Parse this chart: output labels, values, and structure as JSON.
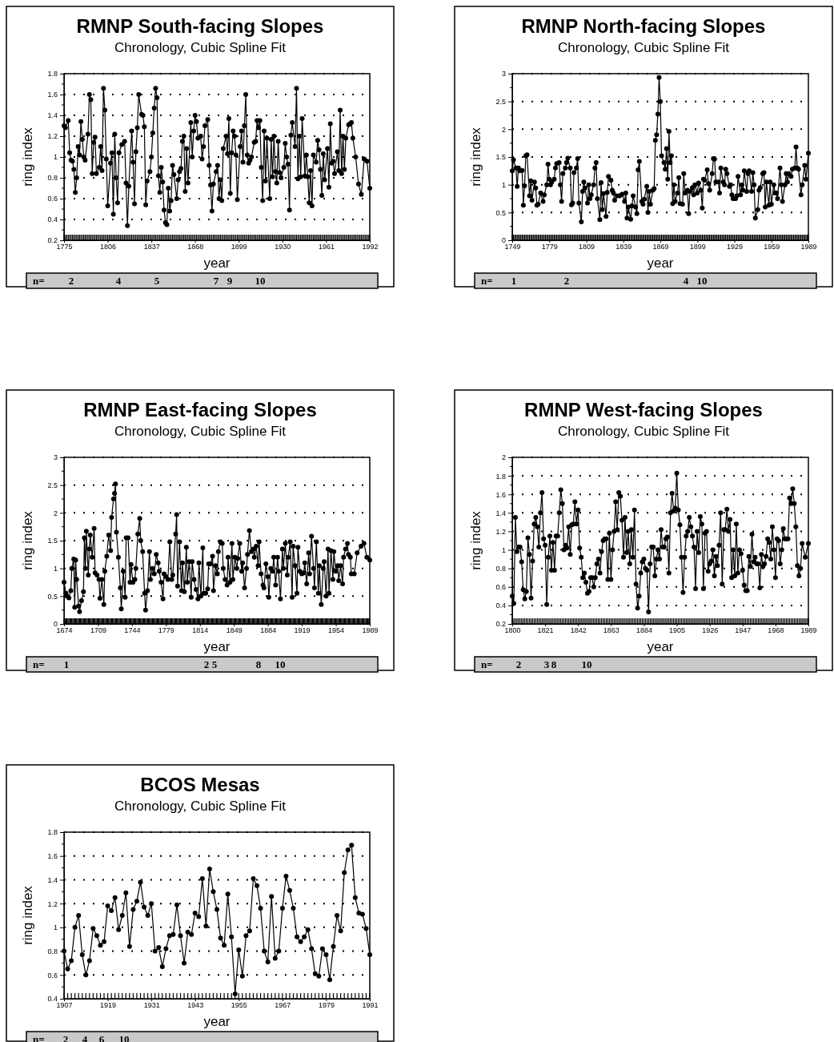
{
  "chart_data": [
    {
      "type": "line",
      "title": "RMNP South-facing Slopes",
      "subtitle": "Chronology, Cubic Spline Fit",
      "xlabel": "year",
      "ylabel": "ring index",
      "color": "#000000",
      "marker": "circle",
      "line_style": "solid",
      "grid": "y",
      "xlim": [
        1775,
        1992
      ],
      "xticks": [
        1775,
        1806,
        1837,
        1868,
        1899,
        1930,
        1961,
        1992
      ],
      "ylim": [
        0.2,
        1.8
      ],
      "yticks": [
        0.2,
        0.4,
        0.6,
        0.8,
        1,
        1.2,
        1.4,
        1.6,
        1.8
      ],
      "x": [
        1775,
        1776,
        1778,
        1779,
        1780,
        1781,
        1782,
        1783,
        1784,
        1785,
        1786,
        1787,
        1788,
        1789,
        1790,
        1792,
        1793,
        1794,
        1795,
        1796,
        1797,
        1798,
        1800,
        1801,
        1802,
        1803,
        1804,
        1805,
        1806,
        1808,
        1809,
        1810,
        1811,
        1812,
        1813,
        1814,
        1816,
        1818,
        1819,
        1820,
        1821,
        1823,
        1824,
        1825,
        1826,
        1827,
        1828,
        1830,
        1831,
        1832,
        1833,
        1834,
        1836,
        1837,
        1838,
        1839,
        1840,
        1841,
        1842,
        1843,
        1844,
        1845,
        1846,
        1847,
        1848,
        1849,
        1850,
        1851,
        1852,
        1853,
        1855,
        1856,
        1857,
        1858,
        1859,
        1860,
        1861,
        1862,
        1863,
        1865,
        1866,
        1867,
        1868,
        1869,
        1870,
        1872,
        1873,
        1874,
        1875,
        1877,
        1878,
        1879,
        1880,
        1881,
        1883,
        1884,
        1885,
        1886,
        1887,
        1888,
        1890,
        1891,
        1892,
        1893,
        1894,
        1895,
        1896,
        1897,
        1898,
        1900,
        1901,
        1902,
        1903,
        1904,
        1905,
        1906,
        1907,
        1908,
        1910,
        1911,
        1912,
        1913,
        1914,
        1915,
        1916,
        1917,
        1918,
        1919,
        1921,
        1922,
        1923,
        1924,
        1925,
        1926,
        1927,
        1928,
        1929,
        1931,
        1932,
        1933,
        1934,
        1935,
        1936,
        1937,
        1939,
        1940,
        1941,
        1942,
        1943,
        1944,
        1946,
        1947,
        1948,
        1949,
        1950,
        1951,
        1952,
        1954,
        1955,
        1956,
        1957,
        1958,
        1959,
        1960,
        1962,
        1963,
        1964,
        1965,
        1966,
        1967,
        1969,
        1970,
        1971,
        1972,
        1973,
        1974,
        1975,
        1977,
        1978,
        1979,
        1980,
        1982,
        1984,
        1986,
        1988,
        1990,
        1992
      ],
      "values": [
        1.3,
        1.28,
        1.35,
        1.04,
        0.97,
        0.96,
        0.88,
        0.66,
        0.8,
        1.1,
        1.02,
        1.34,
        1.17,
        1.0,
        0.97,
        1.22,
        1.6,
        1.55,
        0.84,
        1.14,
        1.19,
        0.84,
        0.9,
        1.1,
        0.87,
        1.66,
        1.45,
        0.98,
        0.53,
        0.94,
        1.04,
        0.45,
        1.22,
        0.8,
        0.56,
        1.04,
        1.12,
        1.15,
        0.75,
        0.34,
        0.72,
        1.25,
        0.95,
        0.55,
        1.05,
        1.28,
        1.6,
        1.41,
        1.4,
        1.29,
        0.54,
        0.77,
        0.86,
        1.0,
        1.23,
        1.47,
        1.66,
        1.57,
        0.82,
        0.66,
        0.9,
        0.76,
        0.49,
        0.37,
        0.35,
        0.7,
        0.48,
        0.58,
        0.92,
        0.83,
        0.6,
        0.78,
        0.86,
        0.89,
        1.15,
        1.2,
        0.67,
        1.08,
        0.75,
        1.33,
        1.0,
        1.25,
        1.4,
        1.34,
        1.18,
        1.2,
        0.98,
        1.1,
        1.3,
        1.36,
        0.92,
        0.73,
        0.48,
        0.74,
        0.86,
        0.92,
        0.6,
        0.78,
        0.58,
        1.08,
        1.2,
        1.03,
        1.37,
        0.65,
        1.04,
        1.25,
        1.2,
        1.02,
        0.59,
        1.1,
        1.25,
        0.95,
        1.3,
        1.6,
        1.02,
        0.94,
        0.97,
        1.0,
        1.14,
        1.15,
        1.35,
        1.28,
        1.35,
        0.9,
        0.58,
        1.25,
        0.77,
        1.18,
        0.6,
        1.17,
        0.81,
        1.2,
        0.86,
        0.75,
        1.15,
        0.85,
        0.8,
        0.9,
        1.13,
        1.0,
        0.93,
        0.49,
        1.21,
        1.33,
        1.1,
        1.66,
        0.79,
        1.2,
        0.81,
        1.37,
        0.82,
        1.02,
        0.81,
        0.56,
        0.87,
        0.53,
        1.02,
        0.95,
        1.16,
        1.07,
        0.88,
        0.63,
        1.03,
        0.78,
        1.08,
        0.71,
        1.32,
        0.94,
        0.96,
        0.84,
        1.05,
        0.87,
        1.45,
        0.84,
        1.2,
        0.88,
        1.18,
        1.31,
        1.32,
        1.33,
        1.18,
        1.0,
        0.74,
        0.64,
        0.98,
        0.96,
        0.7
      ],
      "annotations": [
        "n=",
        "2",
        "4",
        "5",
        "7",
        "9",
        "10"
      ]
    },
    {
      "type": "line",
      "title": "RMNP North-facing Slopes",
      "subtitle": "Chronology, Cubic Spline Fit",
      "xlabel": "year",
      "ylabel": "ring index",
      "color": "#000000",
      "marker": "circle",
      "line_style": "solid",
      "grid": "y",
      "xlim": [
        1749,
        1989
      ],
      "xticks": [
        1749,
        1779,
        1809,
        1839,
        1869,
        1899,
        1929,
        1959,
        1989
      ],
      "ylim": [
        0,
        3
      ],
      "yticks": [
        0,
        0.5,
        1,
        1.5,
        2,
        2.5,
        3
      ],
      "x": [
        1749,
        1750,
        1752,
        1753,
        1754,
        1755,
        1757,
        1758,
        1759,
        1760,
        1761,
        1763,
        1764,
        1765,
        1767,
        1768,
        1769,
        1770,
        1772,
        1774,
        1775,
        1777,
        1778,
        1779,
        1780,
        1781,
        1783,
        1784,
        1785,
        1787,
        1788,
        1789,
        1790,
        1792,
        1793,
        1794,
        1796,
        1797,
        1798,
        1799,
        1801,
        1802,
        1803,
        1805,
        1806,
        1807,
        1808,
        1810,
        1811,
        1812,
        1813,
        1815,
        1816,
        1817,
        1818,
        1820,
        1821,
        1822,
        1823,
        1825,
        1826,
        1827,
        1829,
        1830,
        1831,
        1832,
        1834,
        1836,
        1838,
        1840,
        1841,
        1842,
        1843,
        1845,
        1846,
        1847,
        1849,
        1850,
        1851,
        1852,
        1854,
        1855,
        1856,
        1858,
        1859,
        1860,
        1861,
        1863,
        1864,
        1865,
        1866,
        1867,
        1868,
        1869,
        1870,
        1872,
        1873,
        1874,
        1875,
        1876,
        1877,
        1878,
        1879,
        1880,
        1881,
        1883,
        1884,
        1885,
        1887,
        1888,
        1889,
        1891,
        1892,
        1893,
        1895,
        1896,
        1897,
        1899,
        1900,
        1902,
        1903,
        1904,
        1905,
        1907,
        1908,
        1909,
        1911,
        1912,
        1913,
        1914,
        1916,
        1917,
        1918,
        1920,
        1921,
        1922,
        1923,
        1925,
        1926,
        1927,
        1928,
        1930,
        1931,
        1932,
        1934,
        1935,
        1936,
        1937,
        1939,
        1940,
        1941,
        1943,
        1944,
        1945,
        1946,
        1948,
        1949,
        1950,
        1952,
        1953,
        1954,
        1955,
        1957,
        1958,
        1959,
        1961,
        1962,
        1963,
        1964,
        1966,
        1967,
        1968,
        1970,
        1971,
        1972,
        1973,
        1975,
        1976,
        1978,
        1979,
        1980,
        1981,
        1983,
        1984,
        1986,
        1987,
        1989
      ],
      "values": [
        1.25,
        1.45,
        1.3,
        0.97,
        1.3,
        1.25,
        1.26,
        0.63,
        0.98,
        1.52,
        1.54,
        0.8,
        1.07,
        0.72,
        1.05,
        0.94,
        0.63,
        0.65,
        0.85,
        0.7,
        0.82,
        1.0,
        1.37,
        1.1,
        1.0,
        1.05,
        1.1,
        1.3,
        1.38,
        1.4,
        1.0,
        0.7,
        1.2,
        1.3,
        1.4,
        1.48,
        1.3,
        0.64,
        0.67,
        1.22,
        1.3,
        1.47,
        0.67,
        0.33,
        0.88,
        1.05,
        0.94,
        0.67,
        1.0,
        0.75,
        0.82,
        1.0,
        1.3,
        1.4,
        0.75,
        0.37,
        1.04,
        0.55,
        0.84,
        0.43,
        0.86,
        1.15,
        1.08,
        0.9,
        0.85,
        0.72,
        0.8,
        0.8,
        0.83,
        0.7,
        0.85,
        0.4,
        0.6,
        0.38,
        0.62,
        0.8,
        0.6,
        0.48,
        1.27,
        1.42,
        0.7,
        0.65,
        0.74,
        0.97,
        0.5,
        0.88,
        0.65,
        0.9,
        0.93,
        1.8,
        1.9,
        2.27,
        2.93,
        2.5,
        1.52,
        1.4,
        1.28,
        1.65,
        1.1,
        1.96,
        1.4,
        1.52,
        0.66,
        1.0,
        0.7,
        0.85,
        1.13,
        0.66,
        0.65,
        1.2,
        0.85,
        0.9,
        0.48,
        0.88,
        0.95,
        0.82,
        1.0,
        0.85,
        1.03,
        0.9,
        0.58,
        1.1,
        1.08,
        1.27,
        1.02,
        0.9,
        1.2,
        1.47,
        1.46,
        1.05,
        1.05,
        0.85,
        1.3,
        1.05,
        1.0,
        1.28,
        1.2,
        0.97,
        1.0,
        0.82,
        0.75,
        0.75,
        0.8,
        1.15,
        0.82,
        1.0,
        0.9,
        1.25,
        0.88,
        1.2,
        1.25,
        0.88,
        1.22,
        1.0,
        0.4,
        0.55,
        0.9,
        0.95,
        1.2,
        1.22,
        0.6,
        1.05,
        0.63,
        1.05,
        0.65,
        1.0,
        0.85,
        0.85,
        0.75,
        1.3,
        1.0,
        0.7,
        1.0,
        1.2,
        1.05,
        1.2,
        1.15,
        1.28,
        1.3,
        1.68,
        1.3,
        1.28,
        0.82,
        1.0,
        1.35,
        1.1,
        1.57
      ],
      "annotations": [
        "n=",
        "1",
        "2",
        "4",
        "10"
      ]
    },
    {
      "type": "line",
      "title": "RMNP East-facing Slopes",
      "subtitle": "Chronology, Cubic Spline Fit",
      "xlabel": "year",
      "ylabel": "ring index",
      "color": "#000000",
      "marker": "circle",
      "line_style": "solid",
      "grid": "y",
      "xlim": [
        1674,
        1989
      ],
      "xticks": [
        1674,
        1709,
        1744,
        1779,
        1814,
        1849,
        1884,
        1919,
        1954,
        1989
      ],
      "ylim": [
        0,
        3
      ],
      "yticks": [
        0,
        0.5,
        1,
        1.5,
        2,
        2.5,
        3
      ],
      "x": [
        1674,
        1676,
        1677,
        1679,
        1681,
        1682,
        1684,
        1685,
        1686,
        1687,
        1689,
        1690,
        1692,
        1694,
        1695,
        1696,
        1697,
        1699,
        1700,
        1701,
        1703,
        1705,
        1706,
        1708,
        1710,
        1711,
        1713,
        1715,
        1716,
        1718,
        1720,
        1722,
        1723,
        1725,
        1726,
        1727,
        1728,
        1730,
        1732,
        1733,
        1735,
        1737,
        1738,
        1740,
        1742,
        1743,
        1745,
        1747,
        1748,
        1750,
        1752,
        1753,
        1755,
        1757,
        1758,
        1760,
        1762,
        1763,
        1765,
        1767,
        1769,
        1771,
        1772,
        1774,
        1776,
        1777,
        1779,
        1781,
        1783,
        1785,
        1786,
        1789,
        1790,
        1791,
        1793,
        1795,
        1796,
        1798,
        1800,
        1801,
        1803,
        1805,
        1806,
        1808,
        1810,
        1812,
        1813,
        1815,
        1817,
        1818,
        1820,
        1822,
        1823,
        1825,
        1827,
        1828,
        1830,
        1832,
        1833,
        1835,
        1837,
        1838,
        1840,
        1842,
        1843,
        1845,
        1847,
        1848,
        1850,
        1852,
        1853,
        1855,
        1857,
        1858,
        1860,
        1862,
        1863,
        1865,
        1867,
        1869,
        1870,
        1872,
        1874,
        1875,
        1877,
        1879,
        1880,
        1882,
        1884,
        1885,
        1887,
        1889,
        1890,
        1892,
        1894,
        1895,
        1897,
        1899,
        1900,
        1902,
        1904,
        1905,
        1907,
        1909,
        1910,
        1912,
        1914,
        1915,
        1917,
        1919,
        1921,
        1922,
        1924,
        1926,
        1927,
        1929,
        1931,
        1932,
        1934,
        1936,
        1937,
        1939,
        1941,
        1942,
        1944,
        1946,
        1947,
        1949,
        1951,
        1952,
        1954,
        1956,
        1957,
        1959,
        1961,
        1962,
        1964,
        1966,
        1967,
        1969,
        1970,
        1973,
        1976,
        1980,
        1983,
        1986,
        1989
      ],
      "values": [
        0.75,
        0.55,
        0.5,
        0.47,
        0.6,
        1.0,
        1.17,
        0.3,
        1.15,
        0.8,
        0.32,
        0.22,
        0.42,
        0.58,
        1.55,
        1.0,
        1.67,
        0.88,
        1.35,
        1.6,
        1.2,
        1.72,
        0.92,
        0.88,
        0.8,
        0.46,
        0.8,
        0.35,
        0.95,
        1.22,
        1.6,
        1.32,
        1.92,
        2.25,
        2.35,
        2.52,
        1.65,
        1.2,
        0.65,
        0.27,
        0.95,
        0.48,
        1.55,
        1.55,
        0.75,
        1.07,
        0.75,
        0.8,
        1.0,
        1.62,
        1.9,
        1.5,
        1.3,
        0.55,
        0.25,
        0.6,
        1.3,
        0.8,
        1.0,
        0.9,
        1.25,
        1.1,
        0.95,
        0.75,
        0.45,
        0.9,
        0.85,
        0.8,
        1.48,
        0.8,
        0.88,
        1.62,
        1.97,
        0.68,
        1.48,
        0.6,
        1.1,
        0.58,
        1.38,
        0.75,
        1.12,
        0.48,
        1.12,
        0.8,
        0.62,
        0.45,
        1.1,
        0.5,
        1.37,
        0.55,
        0.55,
        0.63,
        1.08,
        1.08,
        1.22,
        0.6,
        1.05,
        0.9,
        1.3,
        1.48,
        1.45,
        1.0,
        0.8,
        0.7,
        1.2,
        0.75,
        1.45,
        0.8,
        1.2,
        1.0,
        1.18,
        1.45,
        0.95,
        1.1,
        0.65,
        1.0,
        1.25,
        1.68,
        1.3,
        1.35,
        1.2,
        1.4,
        1.05,
        1.48,
        0.9,
        0.7,
        0.65,
        1.08,
        0.85,
        0.48,
        1.0,
        0.95,
        1.2,
        0.7,
        1.2,
        0.95,
        0.45,
        1.35,
        1.0,
        1.45,
        0.88,
        1.2,
        1.48,
        0.48,
        1.4,
        1.05,
        0.55,
        1.38,
        0.95,
        0.9,
        0.92,
        1.1,
        0.72,
        1.28,
        0.9,
        1.58,
        1.0,
        0.65,
        1.48,
        0.55,
        1.05,
        0.35,
        1.0,
        1.12,
        0.5,
        1.35,
        0.55,
        1.32,
        0.8,
        1.3,
        0.95,
        1.05,
        0.78,
        1.05,
        0.72,
        1.2,
        1.35,
        1.45,
        1.25,
        1.2,
        0.9,
        0.9,
        1.28,
        1.4,
        1.45,
        1.2,
        1.15
      ],
      "annotations": [
        "n=",
        "1",
        "2",
        "5",
        "8",
        "10"
      ]
    },
    {
      "type": "line",
      "title": "RMNP West-facing Slopes",
      "subtitle": "Chronology, Cubic Spline Fit",
      "xlabel": "year",
      "ylabel": "ring index",
      "color": "#000000",
      "marker": "circle",
      "line_style": "solid",
      "grid": "y",
      "xlim": [
        1800,
        1989
      ],
      "xticks": [
        1800,
        1821,
        1842,
        1863,
        1884,
        1905,
        1926,
        1947,
        1968,
        1989
      ],
      "ylim": [
        0.2,
        2
      ],
      "yticks": [
        0.2,
        0.4,
        0.6,
        0.8,
        1,
        1.2,
        1.4,
        1.6,
        1.8,
        2
      ],
      "x": [
        1800,
        1801,
        1802,
        1803,
        1804,
        1805,
        1806,
        1807,
        1808,
        1809,
        1810,
        1811,
        1812,
        1813,
        1814,
        1815,
        1816,
        1817,
        1818,
        1819,
        1820,
        1821,
        1822,
        1823,
        1824,
        1825,
        1826,
        1827,
        1828,
        1829,
        1830,
        1831,
        1832,
        1833,
        1834,
        1835,
        1836,
        1837,
        1838,
        1839,
        1840,
        1841,
        1842,
        1843,
        1844,
        1845,
        1846,
        1847,
        1848,
        1849,
        1850,
        1851,
        1852,
        1853,
        1854,
        1855,
        1856,
        1857,
        1858,
        1859,
        1860,
        1861,
        1862,
        1863,
        1864,
        1865,
        1866,
        1867,
        1868,
        1869,
        1870,
        1871,
        1872,
        1873,
        1874,
        1875,
        1876,
        1877,
        1878,
        1879,
        1880,
        1881,
        1882,
        1883,
        1884,
        1885,
        1886,
        1887,
        1888,
        1889,
        1890,
        1891,
        1892,
        1893,
        1894,
        1895,
        1896,
        1897,
        1898,
        1899,
        1900,
        1901,
        1902,
        1903,
        1904,
        1905,
        1906,
        1907,
        1908,
        1909,
        1910,
        1911,
        1912,
        1913,
        1914,
        1915,
        1916,
        1917,
        1918,
        1919,
        1920,
        1921,
        1922,
        1923,
        1924,
        1925,
        1926,
        1927,
        1928,
        1929,
        1930,
        1931,
        1932,
        1933,
        1934,
        1935,
        1936,
        1937,
        1938,
        1939,
        1940,
        1941,
        1942,
        1943,
        1944,
        1945,
        1946,
        1947,
        1948,
        1949,
        1950,
        1951,
        1952,
        1953,
        1954,
        1955,
        1956,
        1957,
        1958,
        1959,
        1960,
        1961,
        1962,
        1963,
        1964,
        1965,
        1966,
        1967,
        1968,
        1969,
        1970,
        1971,
        1972,
        1973,
        1974,
        1975,
        1976,
        1977,
        1978,
        1979,
        1980,
        1981,
        1982,
        1983,
        1984,
        1985,
        1987,
        1989
      ],
      "values": [
        0.5,
        0.42,
        1.35,
        0.98,
        1.03,
        1.03,
        0.87,
        0.57,
        0.47,
        0.55,
        1.13,
        0.95,
        0.48,
        0.88,
        1.28,
        1.35,
        1.25,
        1.03,
        1.4,
        1.62,
        1.12,
        1.05,
        0.41,
        0.92,
        1.15,
        0.78,
        1.08,
        0.78,
        1.15,
        1.15,
        1.4,
        1.65,
        1.5,
        1.0,
        1.05,
        1.02,
        1.25,
        0.95,
        1.27,
        1.28,
        1.52,
        1.28,
        1.43,
        1.02,
        0.92,
        0.7,
        0.75,
        0.65,
        0.53,
        0.55,
        0.7,
        0.7,
        0.6,
        0.7,
        0.85,
        0.9,
        0.75,
        0.98,
        1.1,
        1.12,
        1.12,
        0.68,
        1.18,
        0.68,
        1.0,
        1.2,
        1.52,
        1.22,
        1.62,
        1.58,
        1.32,
        0.92,
        1.35,
        0.97,
        1.2,
        0.85,
        1.22,
        0.92,
        1.43,
        0.63,
        0.37,
        0.5,
        0.75,
        0.87,
        0.9,
        0.8,
        0.78,
        0.33,
        0.85,
        1.03,
        1.03,
        0.72,
        0.9,
        1.0,
        0.9,
        1.22,
        1.03,
        1.03,
        1.12,
        1.14,
        0.75,
        1.4,
        1.61,
        1.42,
        1.45,
        1.83,
        1.43,
        1.27,
        0.92,
        0.54,
        0.92,
        1.15,
        1.2,
        1.35,
        1.25,
        1.15,
        1.03,
        0.58,
        1.2,
        0.97,
        1.36,
        1.28,
        0.58,
        1.18,
        1.2,
        0.77,
        0.85,
        0.88,
        1.0,
        0.72,
        0.93,
        0.83,
        1.05,
        1.4,
        0.63,
        1.22,
        1.22,
        1.44,
        1.2,
        1.33,
        0.7,
        1.0,
        0.72,
        1.28,
        0.75,
        1.0,
        0.96,
        0.78,
        0.62,
        0.56,
        0.56,
        0.93,
        0.82,
        1.17,
        0.87,
        0.92,
        0.85,
        0.85,
        0.59,
        0.95,
        0.82,
        0.85,
        0.93,
        1.12,
        1.08,
        0.9,
        1.25,
        1.0,
        0.7,
        1.12,
        1.1,
        0.85,
        1.0,
        1.23,
        1.12,
        1.12,
        1.12,
        1.56,
        1.5,
        1.66,
        1.5,
        1.25,
        0.83,
        0.72,
        0.8,
        1.07,
        0.92,
        1.07
      ],
      "annotations": [
        "n=",
        "2",
        "3",
        "8",
        "10"
      ]
    },
    {
      "type": "line",
      "title": "BCOS Mesas",
      "subtitle": "Chronology, Cubic Spline Fit",
      "xlabel": "year",
      "ylabel": "ring index",
      "color": "#000000",
      "marker": "circle",
      "line_style": "solid",
      "grid": "y",
      "xlim": [
        1907,
        1991
      ],
      "xticks": [
        1907,
        1919,
        1931,
        1943,
        1955,
        1967,
        1979,
        1991
      ],
      "ylim": [
        0.4,
        1.8
      ],
      "yticks": [
        0.4,
        0.6,
        0.8,
        1,
        1.2,
        1.4,
        1.6,
        1.8
      ],
      "x": [
        1907,
        1908,
        1909,
        1910,
        1911,
        1912,
        1913,
        1914,
        1915,
        1916,
        1917,
        1918,
        1919,
        1920,
        1921,
        1922,
        1923,
        1924,
        1925,
        1926,
        1927,
        1928,
        1929,
        1930,
        1931,
        1932,
        1933,
        1934,
        1935,
        1936,
        1937,
        1938,
        1939,
        1940,
        1941,
        1942,
        1943,
        1944,
        1945,
        1946,
        1947,
        1948,
        1949,
        1950,
        1951,
        1952,
        1953,
        1954,
        1955,
        1956,
        1957,
        1958,
        1959,
        1960,
        1961,
        1962,
        1963,
        1964,
        1965,
        1966,
        1967,
        1968,
        1969,
        1970,
        1971,
        1972,
        1973,
        1974,
        1975,
        1976,
        1977,
        1978,
        1979,
        1980,
        1981,
        1982,
        1983,
        1984,
        1985,
        1986,
        1987,
        1988,
        1989,
        1990,
        1991
      ],
      "values": [
        0.8,
        0.65,
        0.72,
        1.0,
        1.1,
        0.77,
        0.6,
        0.72,
        0.99,
        0.93,
        0.85,
        0.88,
        1.18,
        1.14,
        1.25,
        0.98,
        1.1,
        1.29,
        0.84,
        1.15,
        1.22,
        1.38,
        1.17,
        1.1,
        1.2,
        0.8,
        0.83,
        0.67,
        0.82,
        0.93,
        0.94,
        1.19,
        0.93,
        0.7,
        0.96,
        0.94,
        1.12,
        1.09,
        1.41,
        1.01,
        1.49,
        1.3,
        1.15,
        0.91,
        0.85,
        1.28,
        0.92,
        0.44,
        0.81,
        0.59,
        0.93,
        0.97,
        1.41,
        1.35,
        1.16,
        0.8,
        0.71,
        1.26,
        0.74,
        0.8,
        1.16,
        1.43,
        1.31,
        1.16,
        0.92,
        0.88,
        0.92,
        0.98,
        0.82,
        0.61,
        0.59,
        0.82,
        0.77,
        0.56,
        0.84,
        1.1,
        0.97,
        1.46,
        1.65,
        1.69,
        1.25,
        1.12,
        1.11,
        0.99,
        0.77
      ],
      "annotations": [
        "n=",
        "2",
        "4",
        "6",
        "10"
      ]
    }
  ]
}
